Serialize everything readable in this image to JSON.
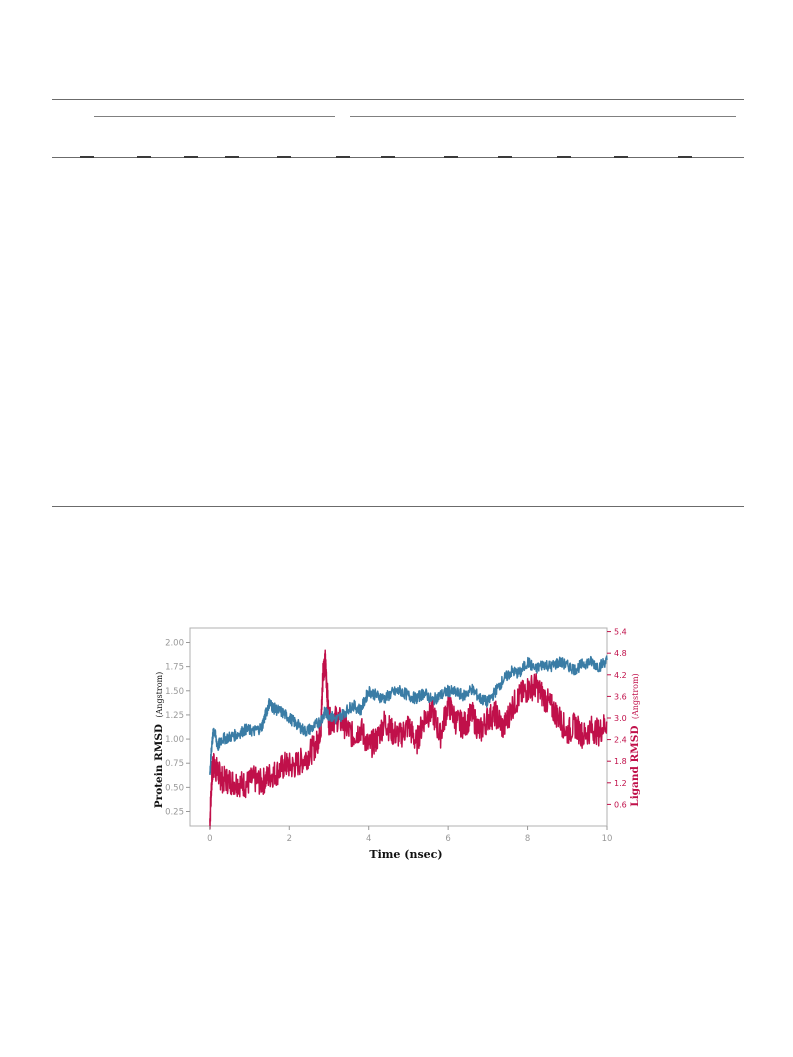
{
  "colors": {
    "protein": "#3a7ca5",
    "ligand": "#c0104a",
    "axis": "#999999",
    "rule": "#6b6b6b"
  },
  "chart_data": {
    "type": "line",
    "xlabel": "Time (nsec)",
    "ylabel_left": "Protein RMSD",
    "ylabel_left_unit": "(Angstrom)",
    "ylabel_right": "Ligand RMSD",
    "ylabel_right_unit": "(Angstrom)",
    "xlim": [
      -0.5,
      10
    ],
    "ylim_left": [
      0.1,
      2.15
    ],
    "ylim_right": [
      0.0,
      5.5
    ],
    "xticks": [
      0,
      2,
      4,
      6,
      8,
      10
    ],
    "yticks_left": [
      "0.25",
      "0.50",
      "0.75",
      "1.00",
      "1.25",
      "1.50",
      "1.75",
      "2.00"
    ],
    "yticks_right": [
      "0.6",
      "1.2",
      "1.8",
      "2.4",
      "3.0",
      "3.6",
      "4.2",
      "4.8",
      "5.4"
    ],
    "grid": false,
    "legend": false,
    "series": [
      {
        "axis": "left",
        "x": [
          0,
          0.05,
          0.1,
          0.2,
          0.3,
          0.5,
          0.7,
          0.9,
          1.1,
          1.3,
          1.4,
          1.5,
          1.6,
          1.8,
          2.0,
          2.2,
          2.4,
          2.6,
          2.8,
          2.9,
          3.0,
          3.2,
          3.4,
          3.6,
          3.8,
          4.0,
          4.2,
          4.4,
          4.6,
          4.8,
          5.0,
          5.2,
          5.4,
          5.6,
          5.8,
          6.0,
          6.2,
          6.4,
          6.6,
          6.8,
          7.0,
          7.2,
          7.4,
          7.6,
          7.8,
          8.0,
          8.2,
          8.4,
          8.6,
          8.8,
          9.0,
          9.2,
          9.4,
          9.6,
          9.8,
          10.0
        ],
        "y": [
          0.62,
          0.95,
          1.1,
          0.92,
          1.0,
          1.02,
          1.05,
          1.1,
          1.08,
          1.12,
          1.25,
          1.38,
          1.32,
          1.28,
          1.22,
          1.15,
          1.08,
          1.12,
          1.2,
          1.28,
          1.25,
          1.2,
          1.28,
          1.35,
          1.3,
          1.5,
          1.45,
          1.42,
          1.48,
          1.5,
          1.45,
          1.42,
          1.48,
          1.4,
          1.45,
          1.5,
          1.48,
          1.45,
          1.52,
          1.42,
          1.38,
          1.5,
          1.62,
          1.7,
          1.68,
          1.8,
          1.72,
          1.78,
          1.75,
          1.8,
          1.76,
          1.72,
          1.78,
          1.8,
          1.75,
          1.82
        ]
      },
      {
        "axis": "right",
        "x": [
          0,
          0.05,
          0.1,
          0.2,
          0.3,
          0.5,
          0.7,
          0.9,
          1.1,
          1.3,
          1.5,
          1.7,
          1.9,
          2.1,
          2.3,
          2.5,
          2.7,
          2.8,
          2.85,
          2.9,
          2.95,
          3.0,
          3.2,
          3.4,
          3.6,
          3.8,
          4.0,
          4.2,
          4.4,
          4.6,
          4.8,
          5.0,
          5.2,
          5.4,
          5.6,
          5.8,
          6.0,
          6.2,
          6.4,
          6.6,
          6.8,
          7.0,
          7.2,
          7.4,
          7.6,
          7.8,
          8.0,
          8.2,
          8.4,
          8.6,
          8.8,
          9.0,
          9.2,
          9.4,
          9.6,
          9.8,
          10.0
        ],
        "y": [
          0.1,
          1.4,
          1.7,
          1.5,
          1.3,
          1.25,
          1.2,
          1.15,
          1.3,
          1.2,
          1.4,
          1.5,
          1.7,
          1.65,
          1.8,
          2.0,
          2.3,
          2.8,
          4.3,
          4.6,
          3.8,
          2.9,
          3.0,
          2.8,
          2.5,
          2.7,
          2.2,
          2.4,
          2.9,
          2.6,
          2.5,
          2.8,
          2.3,
          3.0,
          3.2,
          2.5,
          3.4,
          2.9,
          2.8,
          3.1,
          2.6,
          3.0,
          3.1,
          2.7,
          3.3,
          3.6,
          3.8,
          3.9,
          3.6,
          3.3,
          3.0,
          2.6,
          2.8,
          2.5,
          2.7,
          2.6,
          2.9
        ]
      }
    ]
  }
}
